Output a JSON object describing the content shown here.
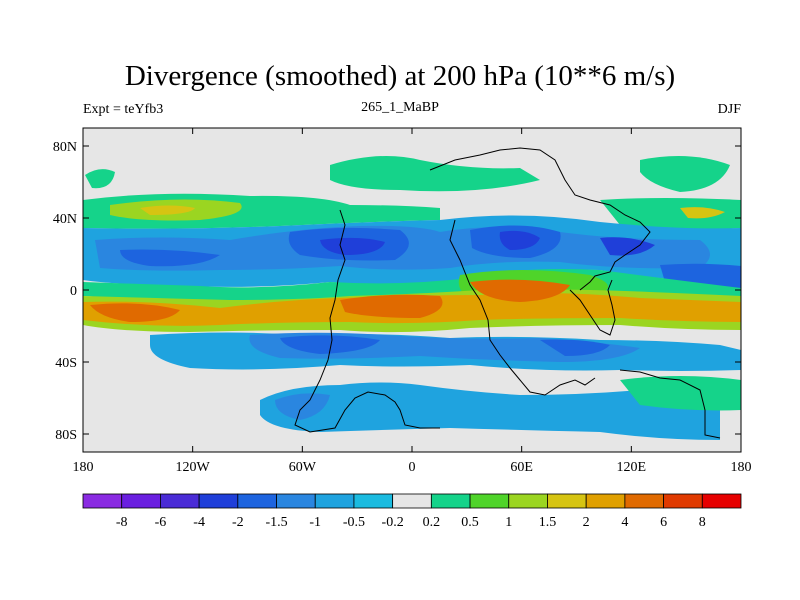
{
  "chart_data": {
    "type": "heatmap",
    "title": "Divergence (smoothed) at 200 hPa (10**6 m/s)",
    "left_label": "Expt = teYfb3",
    "center_label": "265_1_MaBP",
    "right_label": "DJF",
    "x_ticks": [
      "180",
      "120W",
      "60W",
      "0",
      "60E",
      "120E",
      "180"
    ],
    "x_tick_values": [
      -180,
      -120,
      -60,
      0,
      60,
      120,
      180
    ],
    "y_ticks": [
      "80N",
      "40N",
      "0",
      "40S",
      "80S"
    ],
    "y_tick_values": [
      80,
      40,
      0,
      -40,
      -80
    ],
    "xlim": [
      -180,
      180
    ],
    "ylim": [
      -90,
      90
    ],
    "colorbar": {
      "labels": [
        "-8",
        "-6",
        "-4",
        "-2",
        "-1.5",
        "-1",
        "-0.5",
        "-0.2",
        "0.2",
        "0.5",
        "1",
        "1.5",
        "2",
        "4",
        "6",
        "8"
      ],
      "colors": [
        "#8a2be2",
        "#6a1fe0",
        "#4a2cd6",
        "#1f3fd9",
        "#1d64df",
        "#2a86e0",
        "#1fa3df",
        "#1bbbe0",
        "#e6e6e6",
        "#15d38a",
        "#4fd42a",
        "#9bd521",
        "#d6c412",
        "#e0a000",
        "#e06a00",
        "#e03a00",
        "#e60000"
      ]
    },
    "bands": [
      {
        "lat_top": 70,
        "lat_bot": 58,
        "value": "0.5",
        "pattern": "sparse"
      },
      {
        "lat_top": 52,
        "lat_bot": 36,
        "value": "0.5 to 1",
        "pattern": "broad"
      },
      {
        "lat_top": 36,
        "lat_bot": 5,
        "value": "-0.5 to -4",
        "pattern": "broad"
      },
      {
        "lat_top": 5,
        "lat_bot": -5,
        "value": "0.2 to 1",
        "pattern": "broad"
      },
      {
        "lat_top": -5,
        "lat_bot": -25,
        "value": "1.5 to 4",
        "pattern": "broad"
      },
      {
        "lat_top": -25,
        "lat_bot": -45,
        "value": "-0.5 to -2",
        "pattern": "broad"
      },
      {
        "lat_top": -55,
        "lat_bot": -80,
        "value": "-0.5 to -1",
        "pattern": "sparse"
      }
    ]
  }
}
